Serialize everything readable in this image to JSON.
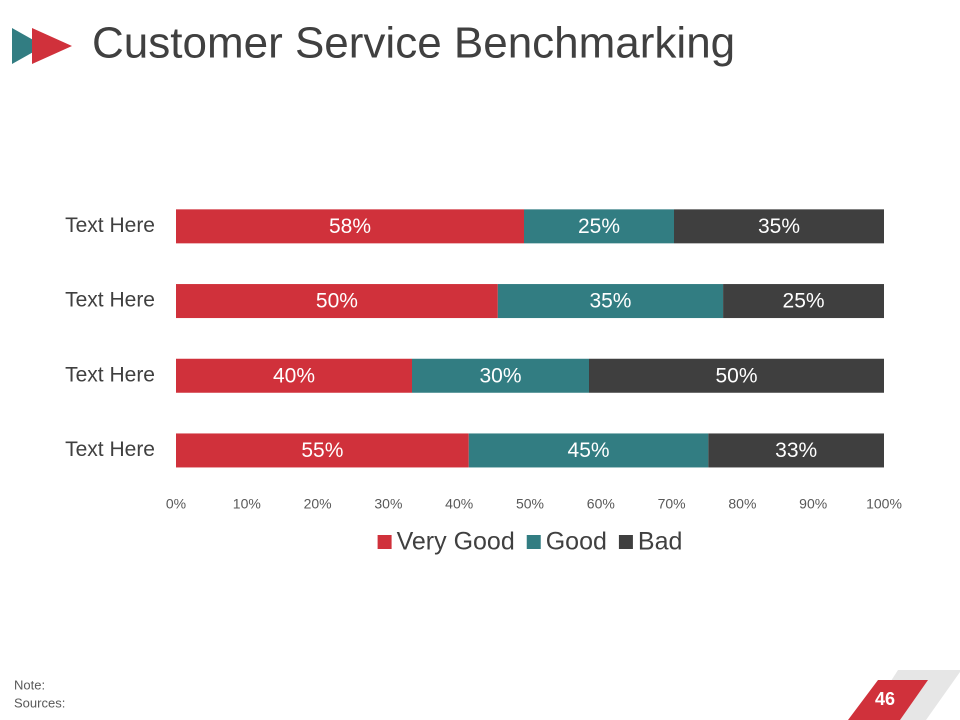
{
  "chart_data": {
    "type": "bar",
    "orientation": "horizontal",
    "stacking": "percent",
    "title": "Customer Service Benchmarking",
    "categories": [
      "Text Here",
      "Text Here",
      "Text Here",
      "Text Here"
    ],
    "series": [
      {
        "name": "Very Good",
        "color": "#d0313b",
        "values": [
          58,
          50,
          40,
          55
        ],
        "value_labels": [
          "58%",
          "50%",
          "40%",
          "55%"
        ]
      },
      {
        "name": "Good",
        "color": "#327d82",
        "values": [
          25,
          35,
          30,
          45
        ],
        "value_labels": [
          "25%",
          "35%",
          "30%",
          "45%"
        ]
      },
      {
        "name": "Bad",
        "color": "#3f3f3f",
        "values": [
          35,
          25,
          50,
          33
        ],
        "value_labels": [
          "35%",
          "25%",
          "50%",
          "33%"
        ]
      }
    ],
    "xlim": [
      0,
      100
    ],
    "xticks": [
      {
        "value": 0,
        "label": "0%"
      },
      {
        "value": 10,
        "label": "10%"
      },
      {
        "value": 20,
        "label": "20%"
      },
      {
        "value": 30,
        "label": "30%"
      },
      {
        "value": 40,
        "label": "40%"
      },
      {
        "value": 50,
        "label": "50%"
      },
      {
        "value": 60,
        "label": "60%"
      },
      {
        "value": 70,
        "label": "70%"
      },
      {
        "value": 80,
        "label": "80%"
      },
      {
        "value": 90,
        "label": "90%"
      },
      {
        "value": 100,
        "label": "100%"
      }
    ],
    "grid": false,
    "legend": "bottom"
  },
  "footer": {
    "note": "Note:",
    "sources": "Sources:",
    "page": "46"
  }
}
